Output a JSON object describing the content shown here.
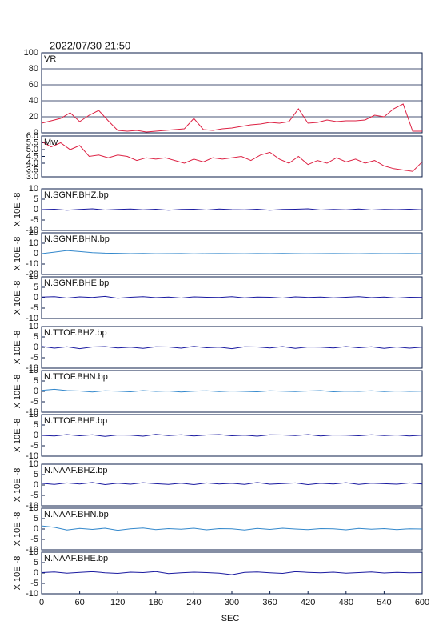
{
  "chart_data": [
    {
      "type": "line",
      "title": "2022/07/30 21:50",
      "label": "VR",
      "color": "#dd2244",
      "grid": true,
      "xlim": [
        0,
        600
      ],
      "ylim": [
        0,
        100
      ],
      "yticks": [
        0,
        20,
        40,
        60,
        80,
        100
      ],
      "x": [
        0,
        15,
        30,
        45,
        60,
        75,
        90,
        105,
        120,
        135,
        150,
        165,
        180,
        195,
        210,
        225,
        240,
        255,
        270,
        285,
        300,
        315,
        330,
        345,
        360,
        375,
        390,
        405,
        420,
        435,
        450,
        465,
        480,
        495,
        510,
        525,
        540,
        555,
        570,
        585,
        600
      ],
      "values": [
        12,
        15,
        18,
        25,
        14,
        22,
        28,
        15,
        3,
        2,
        3,
        1,
        2,
        3,
        4,
        5,
        18,
        4,
        3,
        5,
        6,
        8,
        10,
        11,
        13,
        12,
        14,
        30,
        12,
        13,
        16,
        14,
        15,
        15,
        16,
        22,
        20,
        30,
        36,
        2,
        2
      ]
    },
    {
      "type": "line",
      "label": "Mw",
      "color": "#dd2244",
      "grid": false,
      "xlim": [
        0,
        600
      ],
      "ylim": [
        3,
        6
      ],
      "yticks": [
        {
          "value": 3,
          "label": "3.0"
        },
        {
          "value": 3.5,
          "label": "3.5"
        },
        {
          "value": 4,
          "label": "4.0"
        },
        {
          "value": 4.5,
          "label": "4.5"
        },
        {
          "value": 5,
          "label": "5.0"
        },
        {
          "value": 5.5,
          "label": "5.5"
        },
        {
          "value": 6,
          "label": "6.0"
        }
      ],
      "x": [
        0,
        15,
        30,
        45,
        60,
        75,
        90,
        105,
        120,
        135,
        150,
        165,
        180,
        195,
        210,
        225,
        240,
        255,
        270,
        285,
        300,
        315,
        330,
        345,
        360,
        375,
        390,
        405,
        420,
        435,
        450,
        465,
        480,
        495,
        510,
        525,
        540,
        555,
        570,
        585,
        600
      ],
      "values": [
        5.6,
        5.2,
        5.5,
        5.0,
        5.3,
        4.5,
        4.6,
        4.4,
        4.6,
        4.5,
        4.2,
        4.4,
        4.3,
        4.4,
        4.2,
        4.0,
        4.3,
        4.1,
        4.4,
        4.3,
        4.4,
        4.5,
        4.2,
        4.6,
        4.8,
        4.3,
        4.0,
        4.5,
        3.9,
        4.2,
        4.0,
        4.4,
        4.1,
        4.3,
        4.0,
        4.2,
        3.8,
        3.6,
        3.5,
        3.4,
        4.1
      ]
    },
    {
      "type": "line",
      "label": "N.SGNF.BHZ.bp",
      "ylabel": "X 10E -8",
      "color": "#1a1aa0",
      "xlim": [
        0,
        600
      ],
      "ylim": [
        -10,
        10
      ],
      "yticks": [
        -10,
        -5,
        0,
        5,
        10
      ],
      "x": [
        0,
        20,
        40,
        60,
        80,
        100,
        120,
        140,
        160,
        180,
        200,
        220,
        240,
        260,
        280,
        300,
        320,
        340,
        360,
        380,
        400,
        420,
        440,
        460,
        480,
        500,
        520,
        540,
        560,
        580,
        600
      ],
      "values": [
        0,
        0.2,
        -0.3,
        0.1,
        0.4,
        -0.2,
        0.1,
        0.3,
        -0.1,
        0.2,
        -0.3,
        0.1,
        0.2,
        -0.2,
        0.3,
        0,
        -0.1,
        0.2,
        -0.3,
        0.1,
        0.2,
        0.4,
        -0.2,
        0.1,
        -0.1,
        0.3,
        -0.2,
        0.1,
        0,
        0.2,
        -0.1
      ]
    },
    {
      "type": "line",
      "label": "N.SGNF.BHN.bp",
      "ylabel": "X 10E -8",
      "color": "#3388cc",
      "xlim": [
        0,
        600
      ],
      "ylim": [
        -20,
        20
      ],
      "yticks": [
        -20,
        -10,
        0,
        10,
        20
      ],
      "x": [
        0,
        20,
        40,
        60,
        80,
        100,
        120,
        140,
        160,
        180,
        200,
        220,
        240,
        260,
        280,
        300,
        320,
        340,
        360,
        380,
        400,
        420,
        440,
        460,
        480,
        500,
        520,
        540,
        560,
        580,
        600
      ],
      "values": [
        0,
        1.5,
        3,
        2,
        1,
        0.5,
        0.3,
        0,
        0.2,
        -0.1,
        0,
        0.1,
        -0.2,
        0,
        0.1,
        0,
        -0.1,
        0.1,
        0,
        0.2,
        0,
        -0.1,
        0,
        0.1,
        0,
        -0.1,
        0.1,
        0,
        0,
        0.1,
        0
      ]
    },
    {
      "type": "line",
      "label": "N.SGNF.BHE.bp",
      "ylabel": "X 10E -8",
      "color": "#1a1aa0",
      "xlim": [
        0,
        600
      ],
      "ylim": [
        -10,
        10
      ],
      "yticks": [
        -10,
        -5,
        0,
        5,
        10
      ],
      "x": [
        0,
        20,
        40,
        60,
        80,
        100,
        120,
        140,
        160,
        180,
        200,
        220,
        240,
        260,
        280,
        300,
        320,
        340,
        360,
        380,
        400,
        420,
        440,
        460,
        480,
        500,
        520,
        540,
        560,
        580,
        600
      ],
      "values": [
        0.3,
        0.5,
        -0.2,
        0.4,
        0.1,
        0.6,
        -0.3,
        0.2,
        0.5,
        0,
        0.3,
        -0.2,
        0.4,
        0.2,
        0.1,
        0.5,
        -0.1,
        0.3,
        0.2,
        -0.2,
        0.4,
        0.1,
        0.3,
        -0.1,
        0.2,
        0.5,
        0,
        0.3,
        -0.2,
        0.2,
        0.1
      ]
    },
    {
      "type": "line",
      "label": "N.TTOF.BHZ.bp",
      "ylabel": "X 10E -8",
      "color": "#1a1aa0",
      "xlim": [
        0,
        600
      ],
      "ylim": [
        -10,
        10
      ],
      "yticks": [
        -10,
        -5,
        0,
        5,
        10
      ],
      "x": [
        0,
        20,
        40,
        60,
        80,
        100,
        120,
        140,
        160,
        180,
        200,
        220,
        240,
        260,
        280,
        300,
        320,
        340,
        360,
        380,
        400,
        420,
        440,
        460,
        480,
        500,
        520,
        540,
        560,
        580,
        600
      ],
      "values": [
        0.5,
        -0.4,
        0.3,
        -0.6,
        0.2,
        0.4,
        -0.3,
        0.1,
        -0.5,
        0.3,
        0.2,
        -0.4,
        0.5,
        -0.2,
        0.1,
        -0.6,
        0.3,
        0.2,
        -0.3,
        0.4,
        -0.5,
        0.2,
        0.1,
        -0.3,
        0.4,
        -0.2,
        0.3,
        -0.5,
        0.2,
        -0.4,
        0.1
      ]
    },
    {
      "type": "line",
      "label": "N.TTOF.BHN.bp",
      "ylabel": "X 10E -8",
      "color": "#3388cc",
      "xlim": [
        0,
        600
      ],
      "ylim": [
        -10,
        10
      ],
      "yticks": [
        -10,
        -5,
        0,
        5,
        10
      ],
      "x": [
        0,
        20,
        40,
        60,
        80,
        100,
        120,
        140,
        160,
        180,
        200,
        220,
        240,
        260,
        280,
        300,
        320,
        340,
        360,
        380,
        400,
        420,
        440,
        460,
        480,
        500,
        520,
        540,
        560,
        580,
        600
      ],
      "values": [
        0.5,
        1,
        0.4,
        0.2,
        -0.3,
        0.3,
        0.1,
        -0.2,
        0.4,
        0,
        0.2,
        -0.3,
        0.1,
        0.3,
        -0.1,
        0.2,
        0,
        -0.2,
        0.3,
        0.1,
        -0.1,
        0.2,
        0.4,
        -0.2,
        0.1,
        0,
        0.3,
        -0.1,
        0.2,
        0,
        0.1
      ]
    },
    {
      "type": "line",
      "label": "N.TTOF.BHE.bp",
      "ylabel": "X 10E -8",
      "color": "#1a1aa0",
      "xlim": [
        0,
        600
      ],
      "ylim": [
        -10,
        10
      ],
      "yticks": [
        -10,
        -5,
        0,
        5,
        10
      ],
      "x": [
        0,
        20,
        40,
        60,
        80,
        100,
        120,
        140,
        160,
        180,
        200,
        220,
        240,
        260,
        280,
        300,
        320,
        340,
        360,
        380,
        400,
        420,
        440,
        460,
        480,
        500,
        520,
        540,
        560,
        580,
        600
      ],
      "values": [
        0,
        -0.3,
        0.4,
        -0.2,
        0.3,
        -0.5,
        0.2,
        0.1,
        -0.4,
        0.5,
        -0.1,
        0.3,
        -0.3,
        0.2,
        0.4,
        -0.2,
        0.1,
        -0.4,
        0.3,
        0.2,
        -0.1,
        0.4,
        -0.3,
        0.2,
        0.1,
        -0.2,
        0.3,
        -0.1,
        0.2,
        -0.3,
        0.1
      ]
    },
    {
      "type": "line",
      "label": "N.NAAF.BHZ.bp",
      "ylabel": "X 10E -8",
      "color": "#1a1aa0",
      "xlim": [
        0,
        600
      ],
      "ylim": [
        -10,
        10
      ],
      "yticks": [
        -10,
        -5,
        0,
        5,
        10
      ],
      "x": [
        0,
        20,
        40,
        60,
        80,
        100,
        120,
        140,
        160,
        180,
        200,
        220,
        240,
        260,
        280,
        300,
        320,
        340,
        360,
        380,
        400,
        420,
        440,
        460,
        480,
        500,
        520,
        540,
        560,
        580,
        600
      ],
      "values": [
        0.8,
        0.3,
        1,
        0.5,
        1.2,
        0.2,
        0.9,
        0.4,
        1.1,
        0.6,
        0.3,
        0.9,
        0.2,
        1,
        0.5,
        0.8,
        0.3,
        1.2,
        0.4,
        0.7,
        1,
        0.2,
        0.8,
        0.5,
        1.1,
        0.3,
        0.9,
        0.6,
        0.4,
        1,
        0.5
      ]
    },
    {
      "type": "line",
      "label": "N.NAAF.BHN.bp",
      "ylabel": "X 10E -8",
      "color": "#3388cc",
      "xlim": [
        0,
        600
      ],
      "ylim": [
        -10,
        10
      ],
      "yticks": [
        -10,
        -5,
        0,
        5,
        10
      ],
      "x": [
        0,
        20,
        40,
        60,
        80,
        100,
        120,
        140,
        160,
        180,
        200,
        220,
        240,
        260,
        280,
        300,
        320,
        340,
        360,
        380,
        400,
        420,
        440,
        460,
        480,
        500,
        520,
        540,
        560,
        580,
        600
      ],
      "values": [
        1.5,
        0.8,
        -0.5,
        0.3,
        -0.2,
        0.4,
        -0.6,
        0.1,
        0.5,
        -0.3,
        0.2,
        -0.1,
        0.4,
        -0.4,
        0.2,
        0.1,
        -0.5,
        0.3,
        -0.2,
        0.4,
        0,
        -0.3,
        0.2,
        0.1,
        -0.4,
        0.3,
        -0.1,
        0.2,
        -0.3,
        0.1,
        0
      ]
    },
    {
      "type": "line",
      "label": "N.NAAF.BHE.bp",
      "ylabel": "X 10E -8",
      "color": "#1a1aa0",
      "xlim": [
        0,
        600
      ],
      "ylim": [
        -10,
        10
      ],
      "yticks": [
        -10,
        -5,
        0,
        5,
        10
      ],
      "xticks": [
        0,
        60,
        120,
        180,
        240,
        300,
        360,
        420,
        480,
        540,
        600
      ],
      "xlabel": "SEC",
      "x": [
        0,
        20,
        40,
        60,
        80,
        100,
        120,
        140,
        160,
        180,
        200,
        220,
        240,
        260,
        280,
        300,
        320,
        340,
        360,
        380,
        400,
        420,
        440,
        460,
        480,
        500,
        520,
        540,
        560,
        580,
        600
      ],
      "values": [
        0.2,
        0.5,
        -0.1,
        0.3,
        0.6,
        0.1,
        -0.2,
        0.4,
        0.2,
        0.7,
        -0.3,
        0.1,
        0.4,
        0.2,
        -0.1,
        -0.8,
        0.3,
        0.5,
        0.1,
        -0.2,
        0.6,
        0.3,
        0.1,
        0.4,
        -0.1,
        0.2,
        0.5,
        0,
        0.3,
        0.1,
        0.2
      ]
    }
  ]
}
